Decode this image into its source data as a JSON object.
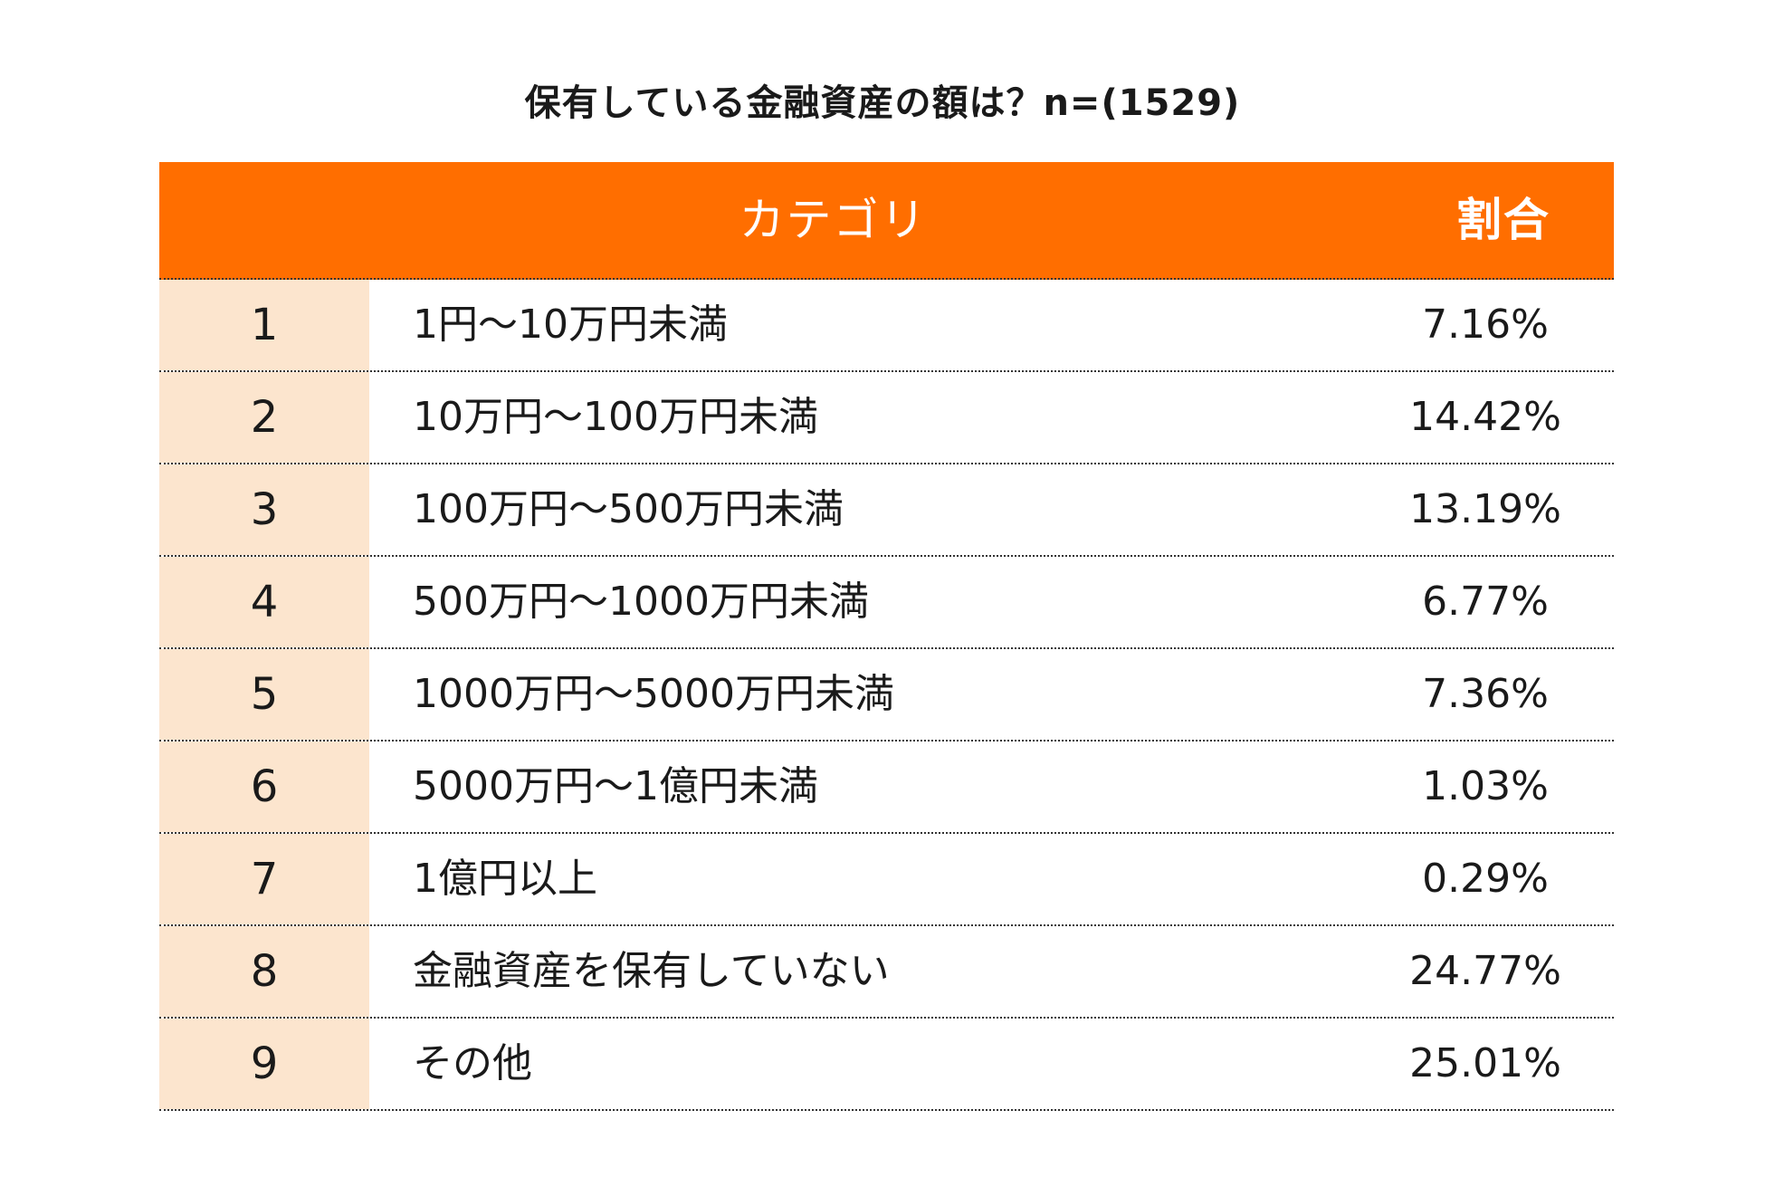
{
  "title": "保有している金融資産の額は？n=(1529)",
  "colors": {
    "header_bg": "#FF6E00",
    "rank_bg": "#FCE5CE",
    "header_text": "#FFFFFF"
  },
  "chart_data": {
    "type": "table",
    "title": "保有している金融資産の額は？n=(1529)",
    "columns": [
      "",
      "カテゴリ",
      "割合"
    ],
    "rows": [
      {
        "rank": "1",
        "category": "1円〜10万円未満",
        "ratio": "7.16%"
      },
      {
        "rank": "2",
        "category": "10万円〜100万円未満",
        "ratio": "14.42%"
      },
      {
        "rank": "3",
        "category": "100万円〜500万円未満",
        "ratio": "13.19%"
      },
      {
        "rank": "4",
        "category": "500万円〜1000万円未満",
        "ratio": "6.77%"
      },
      {
        "rank": "5",
        "category": "1000万円〜5000万円未満",
        "ratio": "7.36%"
      },
      {
        "rank": "6",
        "category": "5000万円〜1億円未満",
        "ratio": "1.03%"
      },
      {
        "rank": "7",
        "category": "1億円以上",
        "ratio": "0.29%"
      },
      {
        "rank": "8",
        "category": "金融資産を保有していない",
        "ratio": "24.77%"
      },
      {
        "rank": "9",
        "category": "その他",
        "ratio": "25.01%"
      }
    ]
  }
}
